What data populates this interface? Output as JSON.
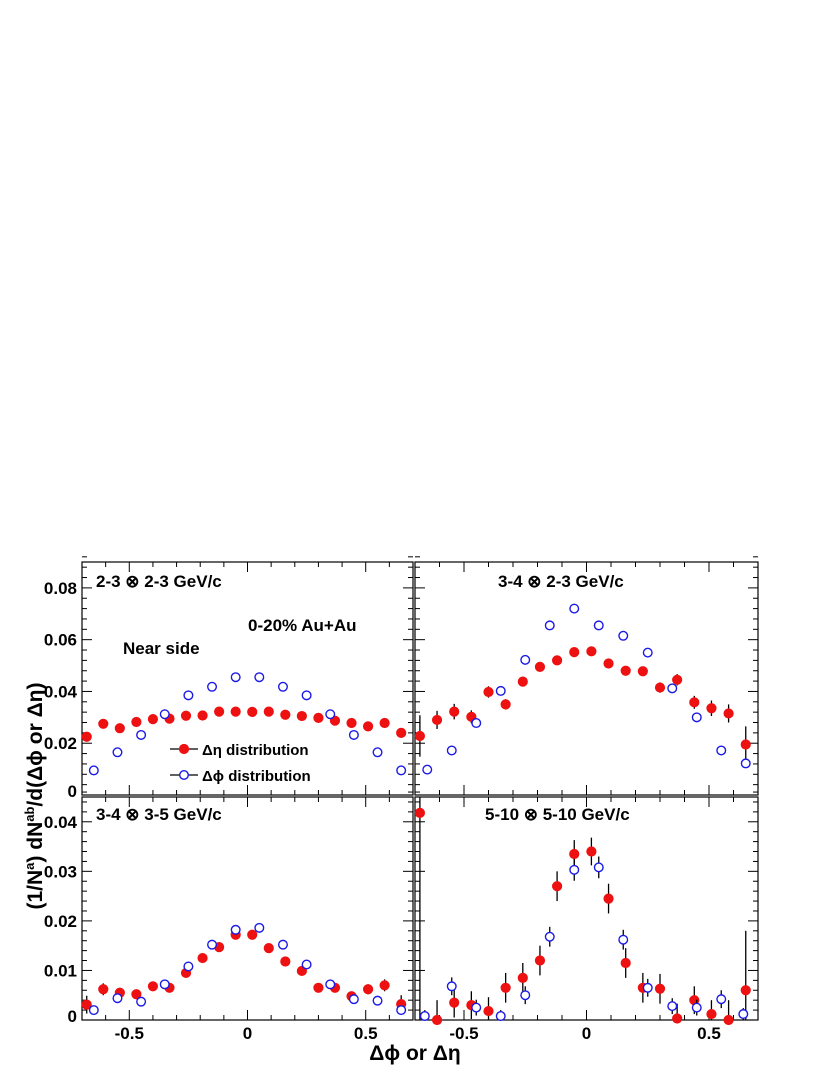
{
  "chart_data": {
    "type": "scatter",
    "xlabel": "Δϕ or Δη",
    "ylabel_parts": {
      "part1": "(1/N",
      "sup1": "a",
      "part2": ")  dN",
      "sup2": "ab",
      "part3": "/d(Δϕ or Δη)"
    },
    "annotations": [
      "0-20% Au+Au",
      "Near side"
    ],
    "legend": [
      "Δη distribution",
      "Δϕ distribution"
    ],
    "series_colors": {
      "eta": "#ee1111",
      "phi": "#1a1ae6"
    },
    "x_tick_labels": [
      "-0.5",
      "0",
      "0.5"
    ],
    "panels": [
      {
        "title": "2-3 ⊗ 2-3 GeV/c",
        "xlim": [
          -0.7,
          0.7
        ],
        "ylim": [
          0,
          0.09
        ],
        "y_tick_labels": [
          "0",
          "0.02",
          "0.04",
          "0.06",
          "0.08"
        ],
        "series": [
          {
            "name": "Δη distribution",
            "marker": "filled",
            "x": [
              -0.68,
              -0.61,
              -0.54,
              -0.47,
              -0.4,
              -0.33,
              -0.26,
              -0.19,
              -0.12,
              -0.05,
              0.02,
              0.09,
              0.16,
              0.23,
              0.3,
              0.37,
              0.44,
              0.51,
              0.58,
              0.65
            ],
            "y": [
              0.0225,
              0.0275,
              0.0258,
              0.0282,
              0.0293,
              0.0295,
              0.0306,
              0.0307,
              0.0322,
              0.0322,
              0.0321,
              0.0322,
              0.031,
              0.0305,
              0.0298,
              0.0287,
              0.0278,
              0.0265,
              0.0278,
              0.024
            ],
            "err": [
              0.0015,
              0.0012,
              0.0012,
              0.0011,
              0.0011,
              0.0011,
              0.001,
              0.001,
              0.001,
              0.001,
              0.001,
              0.001,
              0.001,
              0.001,
              0.0011,
              0.0011,
              0.0011,
              0.0012,
              0.0012,
              0.0015
            ]
          },
          {
            "name": "Δϕ distribution",
            "marker": "open",
            "x": [
              -0.65,
              -0.55,
              -0.45,
              -0.35,
              -0.25,
              -0.15,
              -0.05,
              0.05,
              0.15,
              0.25,
              0.35,
              0.45,
              0.55,
              0.65
            ],
            "y": [
              0.0095,
              0.0165,
              0.0232,
              0.0312,
              0.0385,
              0.0418,
              0.0455,
              0.0455,
              0.0418,
              0.0385,
              0.0312,
              0.0232,
              0.0165,
              0.0095
            ],
            "err": [
              0.0006,
              0.0006,
              0.0006,
              0.0006,
              0.0006,
              0.0006,
              0.0006,
              0.0006,
              0.0006,
              0.0006,
              0.0006,
              0.0006,
              0.0006,
              0.0006
            ]
          }
        ]
      },
      {
        "title": "3-4 ⊗ 2-3 GeV/c",
        "xlim": [
          -0.7,
          0.7
        ],
        "ylim": [
          0,
          0.09
        ],
        "y_tick_labels": [],
        "series": [
          {
            "name": "Δη distribution",
            "marker": "filled",
            "x": [
              -0.68,
              -0.61,
              -0.54,
              -0.47,
              -0.4,
              -0.33,
              -0.26,
              -0.19,
              -0.12,
              -0.05,
              0.02,
              0.09,
              0.16,
              0.23,
              0.3,
              0.37,
              0.44,
              0.51,
              0.58,
              0.65
            ],
            "y": [
              0.0228,
              0.029,
              0.0322,
              0.0302,
              0.0398,
              0.035,
              0.0438,
              0.0495,
              0.052,
              0.0552,
              0.0555,
              0.0508,
              0.048,
              0.0478,
              0.0415,
              0.0445,
              0.0358,
              0.0335,
              0.0315,
              0.0195
            ],
            "err": [
              0.008,
              0.0035,
              0.003,
              0.0025,
              0.0022,
              0.002,
              0.0018,
              0.0016,
              0.0015,
              0.0015,
              0.0015,
              0.0015,
              0.0016,
              0.0018,
              0.002,
              0.0022,
              0.0025,
              0.003,
              0.0035,
              0.007
            ]
          },
          {
            "name": "Δϕ distribution",
            "marker": "open",
            "x": [
              -0.65,
              -0.55,
              -0.45,
              -0.35,
              -0.25,
              -0.15,
              -0.05,
              0.05,
              0.15,
              0.25,
              0.35,
              0.45,
              0.55,
              0.65
            ],
            "y": [
              0.0098,
              0.0172,
              0.0278,
              0.0402,
              0.0522,
              0.0655,
              0.072,
              0.0655,
              0.0615,
              0.055,
              0.0412,
              0.03,
              0.0172,
              0.0122
            ],
            "err": [
              0.0008,
              0.0008,
              0.0008,
              0.0008,
              0.0008,
              0.0008,
              0.0008,
              0.0008,
              0.0008,
              0.0008,
              0.0008,
              0.0008,
              0.0008,
              0.0008
            ]
          }
        ]
      },
      {
        "title": "3-4 ⊗ 3-5 GeV/c",
        "xlim": [
          -0.7,
          0.7
        ],
        "ylim": [
          0,
          0.045
        ],
        "y_tick_labels": [
          "0",
          "0.01",
          "0.02",
          "0.03",
          "0.04"
        ],
        "series": [
          {
            "name": "Δη distribution",
            "marker": "filled",
            "x": [
              -0.68,
              -0.61,
              -0.54,
              -0.47,
              -0.4,
              -0.33,
              -0.26,
              -0.19,
              -0.12,
              -0.05,
              0.02,
              0.09,
              0.16,
              0.23,
              0.3,
              0.37,
              0.44,
              0.51,
              0.58,
              0.65
            ],
            "y": [
              0.0031,
              0.0062,
              0.0055,
              0.0052,
              0.0068,
              0.0065,
              0.0095,
              0.0125,
              0.0147,
              0.0172,
              0.0172,
              0.0145,
              0.0118,
              0.0099,
              0.0065,
              0.0065,
              0.0048,
              0.0062,
              0.007,
              0.0032
            ],
            "err": [
              0.0018,
              0.0012,
              0.001,
              0.0009,
              0.0008,
              0.0008,
              0.0007,
              0.0007,
              0.0007,
              0.0007,
              0.0007,
              0.0007,
              0.0007,
              0.0007,
              0.0008,
              0.0008,
              0.0009,
              0.001,
              0.0012,
              0.0018
            ]
          },
          {
            "name": "Δϕ distribution",
            "marker": "open",
            "x": [
              -0.65,
              -0.55,
              -0.45,
              -0.35,
              -0.25,
              -0.15,
              -0.05,
              0.05,
              0.15,
              0.25,
              0.35,
              0.45,
              0.55,
              0.65
            ],
            "y": [
              0.002,
              0.0044,
              0.0037,
              0.0072,
              0.0108,
              0.0152,
              0.0182,
              0.0186,
              0.0152,
              0.0112,
              0.0072,
              0.0042,
              0.0039,
              0.002
            ],
            "err": [
              0.0004,
              0.0004,
              0.0004,
              0.0004,
              0.0004,
              0.0004,
              0.0004,
              0.0004,
              0.0004,
              0.0004,
              0.0004,
              0.0004,
              0.0004,
              0.0004
            ]
          }
        ]
      },
      {
        "title": "5-10 ⊗ 5-10 GeV/c",
        "xlim": [
          -0.7,
          0.7
        ],
        "ylim": [
          0,
          0.045
        ],
        "y_tick_labels": [],
        "series": [
          {
            "name": "Δη distribution",
            "marker": "filled",
            "x": [
              -0.68,
              -0.61,
              -0.54,
              -0.47,
              -0.4,
              -0.33,
              -0.26,
              -0.19,
              -0.12,
              -0.05,
              0.02,
              0.09,
              0.16,
              0.23,
              0.3,
              0.37,
              0.44,
              0.51,
              0.58,
              0.65
            ],
            "y": [
              0.0418,
              0.0,
              0.0035,
              0.003,
              0.0018,
              0.0065,
              0.0085,
              0.012,
              0.027,
              0.0335,
              0.034,
              0.0245,
              0.0115,
              0.0065,
              0.0063,
              0.0003,
              0.004,
              0.0012,
              0.0,
              0.006
            ],
            "err": [
              0.042,
              0.004,
              0.003,
              0.0028,
              0.0028,
              0.003,
              0.003,
              0.003,
              0.003,
              0.0028,
              0.0028,
              0.003,
              0.003,
              0.003,
              0.003,
              0.003,
              0.0028,
              0.0028,
              0.004,
              0.012
            ]
          },
          {
            "name": "Δϕ distribution",
            "marker": "open",
            "x": [
              -0.66,
              -0.55,
              -0.45,
              -0.35,
              -0.25,
              -0.15,
              -0.05,
              0.05,
              0.15,
              0.25,
              0.35,
              0.45,
              0.55,
              0.64
            ],
            "y": [
              0.0008,
              0.0068,
              0.0025,
              0.0008,
              0.005,
              0.0168,
              0.0303,
              0.0308,
              0.0162,
              0.0065,
              0.0028,
              0.0025,
              0.0042,
              0.0012
            ],
            "err": [
              0.0012,
              0.0018,
              0.0016,
              0.0012,
              0.0018,
              0.002,
              0.0022,
              0.0022,
              0.002,
              0.0018,
              0.0016,
              0.0016,
              0.0018,
              0.0012
            ]
          }
        ]
      }
    ]
  }
}
